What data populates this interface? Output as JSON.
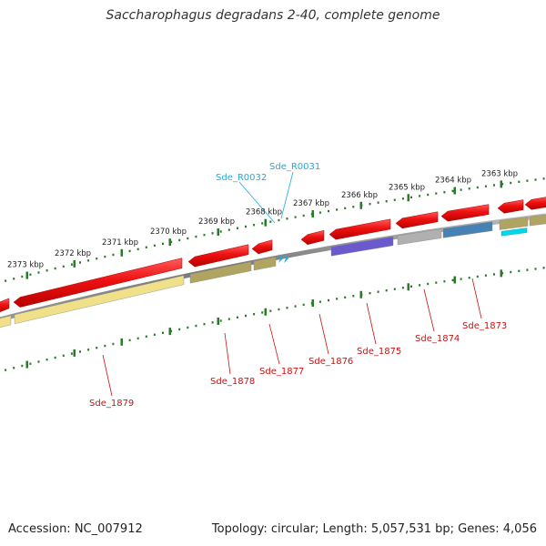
{
  "title": "Saccharophagus degradans 2-40, complete genome",
  "footer": {
    "accession": "Accession: NC_007912",
    "summary": "Topology: circular; Length: 5,057,531 bp; Genes: 4,056"
  },
  "colors": {
    "forward_cds": "#ee1111",
    "rna_label": "#22aadd",
    "gene_label": "#cc1111",
    "backbone": "#888888",
    "tick": "#2a7a2a"
  },
  "ruler": {
    "ticks": [
      {
        "label": "2373 kbp",
        "kbp": 2373
      },
      {
        "label": "2372 kbp",
        "kbp": 2372
      },
      {
        "label": "2371 kbp",
        "kbp": 2371
      },
      {
        "label": "2370 kbp",
        "kbp": 2370
      },
      {
        "label": "2369 kbp",
        "kbp": 2369
      },
      {
        "label": "2368 kbp",
        "kbp": 2368
      },
      {
        "label": "2367 kbp",
        "kbp": 2367
      },
      {
        "label": "2366 kbp",
        "kbp": 2366
      },
      {
        "label": "2365 kbp",
        "kbp": 2365
      },
      {
        "label": "2364 kbp",
        "kbp": 2364
      },
      {
        "label": "2363 kbp",
        "kbp": 2363
      }
    ]
  },
  "rna_labels": [
    {
      "label": "Sde_R0032",
      "color": "#22aadd"
    },
    {
      "label": "Sde_R0031",
      "color": "#22aadd"
    }
  ],
  "gene_labels": [
    {
      "label": "Sde_1879"
    },
    {
      "label": "Sde_1878"
    },
    {
      "label": "Sde_1877"
    },
    {
      "label": "Sde_1876"
    },
    {
      "label": "Sde_1875"
    },
    {
      "label": "Sde_1874"
    },
    {
      "label": "Sde_1873"
    }
  ],
  "cog_colors": {
    "pale_yellow": "#f0e08a",
    "olive": "#b0a460",
    "purple": "#6a5acd",
    "grey": "#b0b0b0",
    "steel_blue": "#4682b4",
    "cyan": "#00d8e8"
  }
}
